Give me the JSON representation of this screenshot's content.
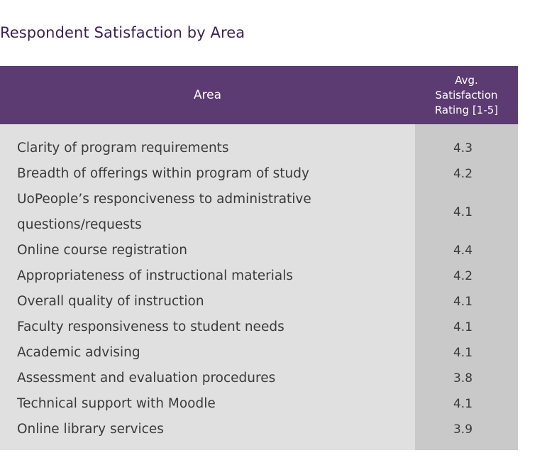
{
  "chart_data": {
    "type": "table",
    "title": "Respondent Satisfaction by Area",
    "columns": [
      "Area",
      "Avg.\nSatisfaction\nRating [1-5]"
    ],
    "rows": [
      {
        "area": "Clarity of program requirements",
        "rating": "4.3"
      },
      {
        "area": "Breadth of offerings within program of study",
        "rating": "4.2"
      },
      {
        "area": "UoPeople’s responciveness to administrative questions/requests",
        "rating": "4.1"
      },
      {
        "area": "Online course registration",
        "rating": "4.4"
      },
      {
        "area": "Appropriateness of instructional materials",
        "rating": "4.2"
      },
      {
        "area": "Overall quality of instruction",
        "rating": "4.1"
      },
      {
        "area": "Faculty responsiveness to student needs",
        "rating": "4.1"
      },
      {
        "area": "Academic advising",
        "rating": "4.1"
      },
      {
        "area": "Assessment and evaluation procedures",
        "rating": "3.8"
      },
      {
        "area": "Technical support with Moodle",
        "rating": "4.1"
      },
      {
        "area": "Online library services",
        "rating": "3.9"
      }
    ]
  },
  "colors": {
    "header_bg": "#5c3a72",
    "title": "#3b1f56",
    "body_left": "#e0e0e0",
    "body_right": "#c9c9c9"
  }
}
